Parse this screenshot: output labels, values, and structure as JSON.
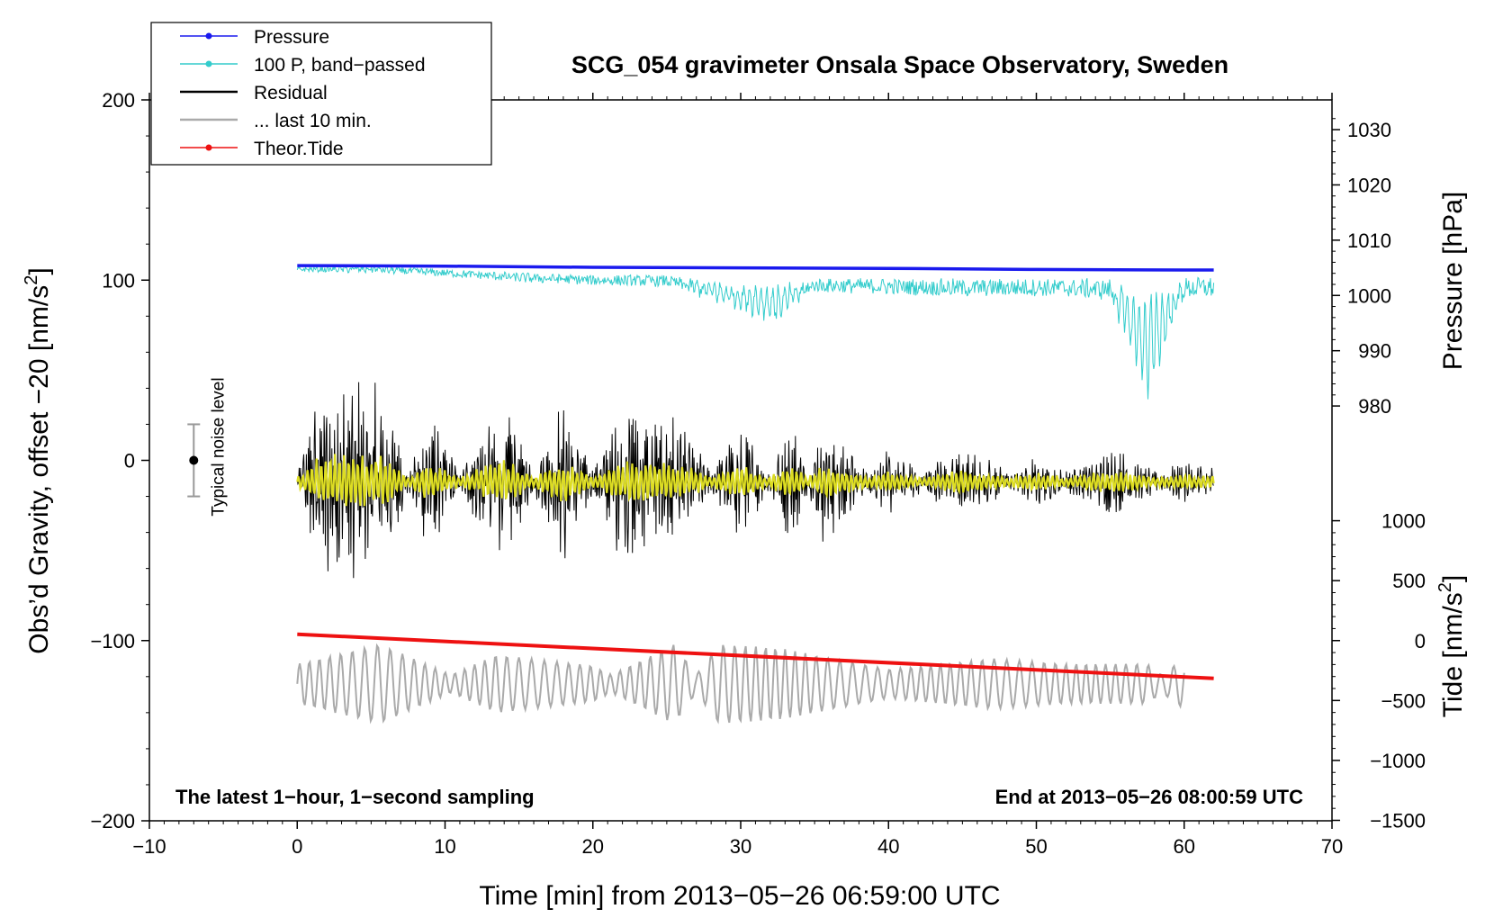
{
  "chart_data": {
    "type": "line",
    "title": "SCG_054 gravimeter Onsala Space Observatory, Sweden",
    "xlabel": "Time [min] from 2013−05−26 06:59:00 UTC",
    "ylabel_left": "Obs’d Gravity, offset −20 [nm/s",
    "ylabel_left_sup": "2",
    "ylabel_left_end": "]",
    "ylabel_right_pressure": "Pressure [hPa]",
    "ylabel_right_tide": "Tide [nm/s",
    "ylabel_right_tide_sup": "2",
    "ylabel_right_tide_end": "]",
    "xlim": [
      -10,
      70
    ],
    "ylim_left": [
      -200,
      200
    ],
    "x_ticks": [
      -10,
      0,
      10,
      20,
      30,
      40,
      50,
      60,
      70
    ],
    "x_tick_labels": [
      "−10",
      "0",
      "10",
      "20",
      "30",
      "40",
      "50",
      "60",
      "70"
    ],
    "y_ticks_left": [
      200,
      100,
      0,
      -100,
      -200
    ],
    "y_tick_labels_left": [
      "200",
      "100",
      "0",
      "−100",
      "−200"
    ],
    "pressure_ticks": [
      1030,
      1020,
      1010,
      1000,
      990,
      980
    ],
    "pressure_tick_labels": [
      "1030",
      "1020",
      "1010",
      "1000",
      "990",
      "980"
    ],
    "pressure_axis_map": {
      "value_a": 1000,
      "gravity_a": 91.5,
      "value_b": 1030,
      "gravity_b": 183.5
    },
    "tide_ticks": [
      1000,
      500,
      0,
      -500,
      -1000,
      -1500
    ],
    "tide_tick_labels": [
      "1000",
      "500",
      "0",
      "−500",
      "−1000",
      "−1500"
    ],
    "tide_axis_map": {
      "value_a": 0,
      "gravity_a": -100,
      "value_b": 1000,
      "gravity_b": -33.5
    },
    "noise_level": {
      "x": -7,
      "center": 0,
      "half_range": 20,
      "label": "Typical noise level"
    },
    "annotation_left": "The latest 1−hour, 1−second sampling",
    "annotation_right": "End at 2013−05−26 08:00:59 UTC",
    "legend": {
      "placement": "top-left",
      "entries": [
        {
          "label": "Pressure",
          "color": "#1a1aee",
          "marker": true
        },
        {
          "label": "100 P, band−passed",
          "color": "#33cccc",
          "marker": true
        },
        {
          "label": "Residual",
          "color": "#000000",
          "marker": false
        },
        {
          "label": "... last 10 min.",
          "color": "#aaaaaa",
          "marker": false
        },
        {
          "label": "Theor.Tide",
          "color": "#ee1111",
          "marker": true
        }
      ]
    },
    "series": [
      {
        "name": "Pressure",
        "unit": "hPa",
        "x": [
          0,
          10,
          20,
          30,
          40,
          50,
          60,
          62
        ],
        "values": [
          1005.4,
          1005.3,
          1005.1,
          1005.0,
          1004.9,
          1004.7,
          1004.6,
          1004.6
        ]
      },
      {
        "name": "100 P, band−passed",
        "unit": "nm/s2",
        "x": [
          0,
          5,
          10,
          15,
          20,
          25,
          29.5,
          32.5,
          35,
          40,
          45,
          50,
          55,
          57.5,
          60,
          62
        ],
        "values": [
          106,
          107,
          104,
          101,
          100,
          100,
          86,
          78,
          97,
          96,
          95,
          96,
          94,
          35,
          95,
          96
        ]
      },
      {
        "name": "Residual",
        "unit": "nm/s2",
        "x": [
          0,
          1.6,
          5.8,
          8.8,
          13.8,
          18,
          22,
          26,
          30,
          33.5,
          35.6,
          40,
          45,
          50,
          55,
          60,
          62
        ],
        "values": [
          -12,
          -83,
          -80,
          40,
          -75,
          47,
          -68,
          -55,
          30,
          -53,
          30,
          -30,
          10,
          -25,
          8,
          -22,
          -15
        ]
      },
      {
        "name": "... last 10 min.",
        "unit": "nm/s2",
        "x": [
          0,
          5.6,
          13.5,
          20,
          25.5,
          28.5,
          32.5,
          40,
          47,
          52,
          57.5,
          59.8
        ],
        "values": [
          -118,
          -107,
          -135,
          -129,
          -107,
          -141,
          -139,
          -127,
          -133,
          -130,
          -130,
          -116
        ]
      },
      {
        "name": "Theor.Tide",
        "unit": "nm/s2",
        "x": [
          0,
          62
        ],
        "values": [
          -96.5,
          -121
        ]
      }
    ]
  }
}
